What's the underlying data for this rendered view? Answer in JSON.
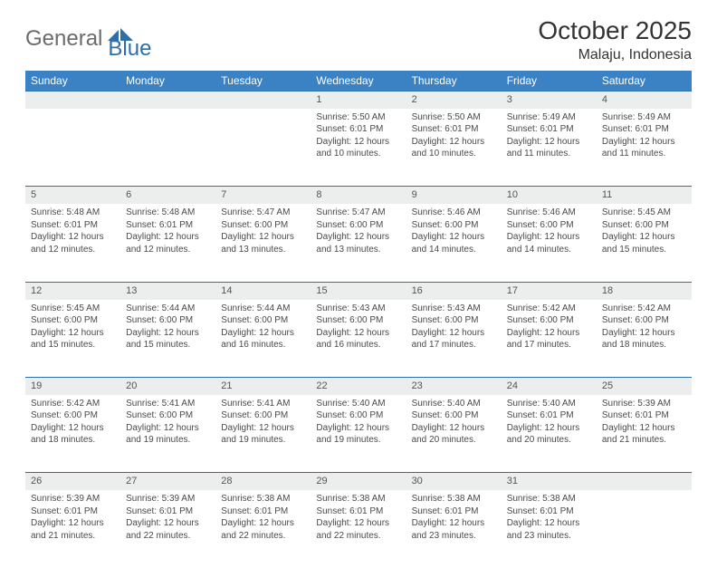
{
  "logo": {
    "text_gray": "General",
    "text_blue": "Blue"
  },
  "title": "October 2025",
  "subtitle": "Malaju, Indonesia",
  "colors": {
    "header_bg": "#3b82c4",
    "header_text": "#ffffff",
    "daynum_bg": "#eceded",
    "row_border": "#2f6fa8",
    "body_text": "#4a4a4a",
    "logo_gray": "#6b6b6b",
    "logo_blue": "#2f6fa8"
  },
  "day_headers": [
    "Sunday",
    "Monday",
    "Tuesday",
    "Wednesday",
    "Thursday",
    "Friday",
    "Saturday"
  ],
  "weeks": [
    {
      "nums": [
        "",
        "",
        "",
        "1",
        "2",
        "3",
        "4"
      ],
      "cells": [
        [],
        [],
        [],
        [
          "Sunrise: 5:50 AM",
          "Sunset: 6:01 PM",
          "Daylight: 12 hours and 10 minutes."
        ],
        [
          "Sunrise: 5:50 AM",
          "Sunset: 6:01 PM",
          "Daylight: 12 hours and 10 minutes."
        ],
        [
          "Sunrise: 5:49 AM",
          "Sunset: 6:01 PM",
          "Daylight: 12 hours and 11 minutes."
        ],
        [
          "Sunrise: 5:49 AM",
          "Sunset: 6:01 PM",
          "Daylight: 12 hours and 11 minutes."
        ]
      ]
    },
    {
      "nums": [
        "5",
        "6",
        "7",
        "8",
        "9",
        "10",
        "11"
      ],
      "cells": [
        [
          "Sunrise: 5:48 AM",
          "Sunset: 6:01 PM",
          "Daylight: 12 hours and 12 minutes."
        ],
        [
          "Sunrise: 5:48 AM",
          "Sunset: 6:01 PM",
          "Daylight: 12 hours and 12 minutes."
        ],
        [
          "Sunrise: 5:47 AM",
          "Sunset: 6:00 PM",
          "Daylight: 12 hours and 13 minutes."
        ],
        [
          "Sunrise: 5:47 AM",
          "Sunset: 6:00 PM",
          "Daylight: 12 hours and 13 minutes."
        ],
        [
          "Sunrise: 5:46 AM",
          "Sunset: 6:00 PM",
          "Daylight: 12 hours and 14 minutes."
        ],
        [
          "Sunrise: 5:46 AM",
          "Sunset: 6:00 PM",
          "Daylight: 12 hours and 14 minutes."
        ],
        [
          "Sunrise: 5:45 AM",
          "Sunset: 6:00 PM",
          "Daylight: 12 hours and 15 minutes."
        ]
      ]
    },
    {
      "nums": [
        "12",
        "13",
        "14",
        "15",
        "16",
        "17",
        "18"
      ],
      "cells": [
        [
          "Sunrise: 5:45 AM",
          "Sunset: 6:00 PM",
          "Daylight: 12 hours and 15 minutes."
        ],
        [
          "Sunrise: 5:44 AM",
          "Sunset: 6:00 PM",
          "Daylight: 12 hours and 15 minutes."
        ],
        [
          "Sunrise: 5:44 AM",
          "Sunset: 6:00 PM",
          "Daylight: 12 hours and 16 minutes."
        ],
        [
          "Sunrise: 5:43 AM",
          "Sunset: 6:00 PM",
          "Daylight: 12 hours and 16 minutes."
        ],
        [
          "Sunrise: 5:43 AM",
          "Sunset: 6:00 PM",
          "Daylight: 12 hours and 17 minutes."
        ],
        [
          "Sunrise: 5:42 AM",
          "Sunset: 6:00 PM",
          "Daylight: 12 hours and 17 minutes."
        ],
        [
          "Sunrise: 5:42 AM",
          "Sunset: 6:00 PM",
          "Daylight: 12 hours and 18 minutes."
        ]
      ]
    },
    {
      "nums": [
        "19",
        "20",
        "21",
        "22",
        "23",
        "24",
        "25"
      ],
      "cells": [
        [
          "Sunrise: 5:42 AM",
          "Sunset: 6:00 PM",
          "Daylight: 12 hours and 18 minutes."
        ],
        [
          "Sunrise: 5:41 AM",
          "Sunset: 6:00 PM",
          "Daylight: 12 hours and 19 minutes."
        ],
        [
          "Sunrise: 5:41 AM",
          "Sunset: 6:00 PM",
          "Daylight: 12 hours and 19 minutes."
        ],
        [
          "Sunrise: 5:40 AM",
          "Sunset: 6:00 PM",
          "Daylight: 12 hours and 19 minutes."
        ],
        [
          "Sunrise: 5:40 AM",
          "Sunset: 6:00 PM",
          "Daylight: 12 hours and 20 minutes."
        ],
        [
          "Sunrise: 5:40 AM",
          "Sunset: 6:01 PM",
          "Daylight: 12 hours and 20 minutes."
        ],
        [
          "Sunrise: 5:39 AM",
          "Sunset: 6:01 PM",
          "Daylight: 12 hours and 21 minutes."
        ]
      ]
    },
    {
      "nums": [
        "26",
        "27",
        "28",
        "29",
        "30",
        "31",
        ""
      ],
      "cells": [
        [
          "Sunrise: 5:39 AM",
          "Sunset: 6:01 PM",
          "Daylight: 12 hours and 21 minutes."
        ],
        [
          "Sunrise: 5:39 AM",
          "Sunset: 6:01 PM",
          "Daylight: 12 hours and 22 minutes."
        ],
        [
          "Sunrise: 5:38 AM",
          "Sunset: 6:01 PM",
          "Daylight: 12 hours and 22 minutes."
        ],
        [
          "Sunrise: 5:38 AM",
          "Sunset: 6:01 PM",
          "Daylight: 12 hours and 22 minutes."
        ],
        [
          "Sunrise: 5:38 AM",
          "Sunset: 6:01 PM",
          "Daylight: 12 hours and 23 minutes."
        ],
        [
          "Sunrise: 5:38 AM",
          "Sunset: 6:01 PM",
          "Daylight: 12 hours and 23 minutes."
        ],
        []
      ]
    }
  ]
}
